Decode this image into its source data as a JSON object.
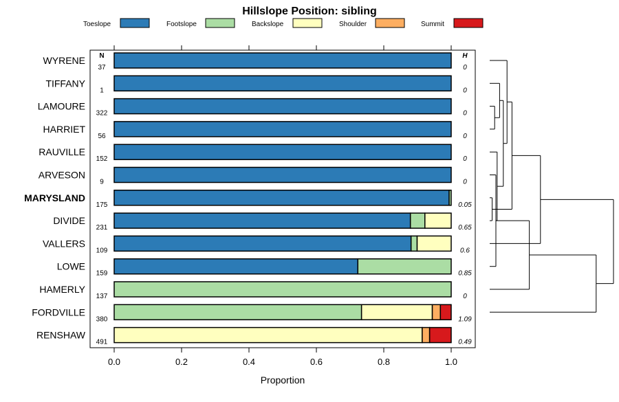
{
  "chart_data": {
    "type": "bar",
    "orientation": "horizontal",
    "stacked": true,
    "title": "Hillslope Position: sibling",
    "xlabel": "Proportion",
    "xlim": [
      0,
      1
    ],
    "xticks": [
      "0.0",
      "0.2",
      "0.4",
      "0.6",
      "0.8",
      "1.0"
    ],
    "n_header": "N",
    "h_header": "H",
    "legend": [
      {
        "name": "Toeslope",
        "color": "#2c7bb6"
      },
      {
        "name": "Footslope",
        "color": "#abdda4"
      },
      {
        "name": "Backslope",
        "color": "#ffffbf"
      },
      {
        "name": "Shoulder",
        "color": "#fdae61"
      },
      {
        "name": "Summit",
        "color": "#d7191c"
      }
    ],
    "rows": [
      {
        "name": "WYRENE",
        "n": "37",
        "h": "0",
        "highlight": false,
        "values": [
          1,
          0,
          0,
          0,
          0
        ]
      },
      {
        "name": "TIFFANY",
        "n": "1",
        "h": "0",
        "highlight": false,
        "values": [
          1,
          0,
          0,
          0,
          0
        ]
      },
      {
        "name": "LAMOURE",
        "n": "322",
        "h": "0",
        "highlight": false,
        "values": [
          1,
          0,
          0,
          0,
          0
        ]
      },
      {
        "name": "HARRIET",
        "n": "56",
        "h": "0",
        "highlight": false,
        "values": [
          1,
          0,
          0,
          0,
          0
        ]
      },
      {
        "name": "RAUVILLE",
        "n": "152",
        "h": "0",
        "highlight": false,
        "values": [
          1,
          0,
          0,
          0,
          0
        ]
      },
      {
        "name": "ARVESON",
        "n": "9",
        "h": "0",
        "highlight": false,
        "values": [
          1,
          0,
          0,
          0,
          0
        ]
      },
      {
        "name": "MARYSLAND",
        "n": "175",
        "h": "0.05",
        "highlight": true,
        "values": [
          0.994,
          0.006,
          0,
          0,
          0
        ]
      },
      {
        "name": "DIVIDE",
        "n": "231",
        "h": "0.65",
        "highlight": false,
        "values": [
          0.879,
          0.043,
          0.078,
          0,
          0
        ]
      },
      {
        "name": "VALLERS",
        "n": "109",
        "h": "0.6",
        "highlight": false,
        "values": [
          0.881,
          0.018,
          0.101,
          0,
          0
        ]
      },
      {
        "name": "LOWE",
        "n": "159",
        "h": "0.85",
        "highlight": false,
        "values": [
          0.723,
          0.277,
          0,
          0,
          0
        ]
      },
      {
        "name": "HAMERLY",
        "n": "137",
        "h": "0",
        "highlight": false,
        "values": [
          0,
          1,
          0,
          0,
          0
        ]
      },
      {
        "name": "FORDVILLE",
        "n": "380",
        "h": "1.09",
        "highlight": false,
        "values": [
          0,
          0.734,
          0.21,
          0.024,
          0.032
        ]
      },
      {
        "name": "RENSHAW",
        "n": "491",
        "h": "0.49",
        "highlight": false,
        "values": [
          0,
          0,
          0.914,
          0.022,
          0.064
        ]
      }
    ],
    "dendrogram": {
      "leaves": [
        "WYRENE",
        "TIFFANY",
        "LAMOURE",
        "HARRIET",
        "RAUVILLE",
        "ARVESON",
        "MARYSLAND",
        "DIVIDE",
        "VALLERS",
        "LOWE",
        "HAMERLY",
        "FORDVILLE",
        "RENSHAW"
      ],
      "merges": [
        {
          "a": "MARYSLAND",
          "b": "DIVIDE",
          "height": 0.02
        },
        {
          "a": "LAMOURE",
          "b": "HARRIET",
          "height": 0.04
        },
        {
          "a": "ARVESON",
          "b": "LOWE",
          "height": 0.05
        },
        {
          "a": "RAUVILLE",
          "b": "ARVESON",
          "height": 0.06
        },
        {
          "a": "TIFFANY",
          "b": "LAMOURE",
          "height": 0.08
        },
        {
          "a": "TIFFANY",
          "b": "RAUVILLE",
          "height": 0.11
        },
        {
          "a": "WYRENE",
          "b": "TIFFANY",
          "height": 0.14
        },
        {
          "a": "WYRENE",
          "b": "MARYSLAND",
          "height": 0.18
        },
        {
          "a": "WYRENE",
          "b": "VALLERS",
          "height": 0.41
        },
        {
          "a": "LOWE",
          "b": "HAMERLY",
          "height": 0.32
        },
        {
          "a": "LOWE",
          "b": "FORDVILLE",
          "height": 0.86
        },
        {
          "a": "WYRENE",
          "b": "LOWE",
          "height": 1.0
        }
      ]
    }
  }
}
